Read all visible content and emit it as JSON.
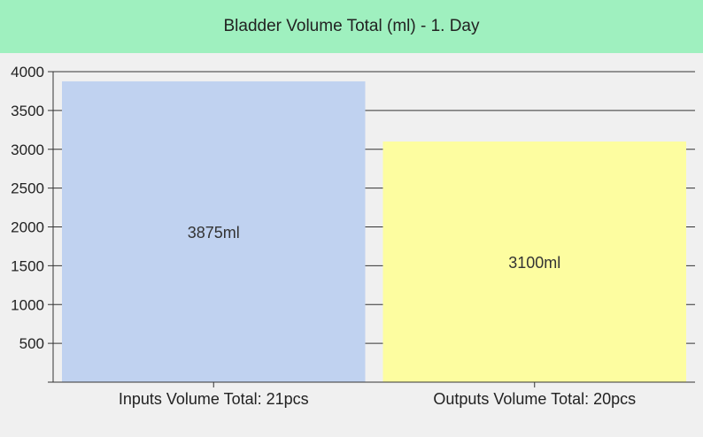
{
  "header": {
    "title": "Bladder Volume Total (ml) - 1. Day"
  },
  "chart_data": {
    "type": "bar",
    "title": "Bladder Volume Total (ml) - 1. Day",
    "categories": [
      "Inputs Volume Total: 21pcs",
      "Outputs Volume Total: 20pcs"
    ],
    "values": [
      3875,
      3100
    ],
    "value_labels": [
      "3875ml",
      "3100ml"
    ],
    "colors": [
      "#c0d2f0",
      "#fdfda0"
    ],
    "ylim": [
      0,
      4000
    ],
    "yticks": [
      500,
      1000,
      1500,
      2000,
      2500,
      3000,
      3500,
      4000
    ],
    "grid": true,
    "xlabel": "",
    "ylabel": ""
  }
}
